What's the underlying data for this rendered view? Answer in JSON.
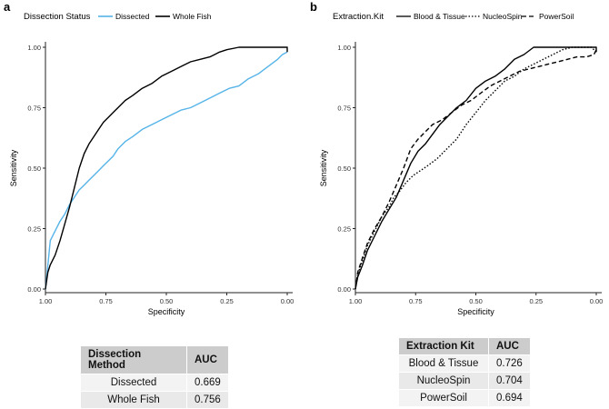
{
  "colors": {
    "axis": "#222222",
    "whole_fish": "#000000",
    "dissected": "#56b4e9",
    "table_header_bg": "#cccccc"
  },
  "panel_a": {
    "label": "a",
    "legend_title": "Dissection Status",
    "table": {
      "headers": [
        "Dissection Method",
        "AUC"
      ],
      "rows": [
        [
          "Dissected",
          "0.669"
        ],
        [
          "Whole Fish",
          "0.756"
        ]
      ]
    }
  },
  "panel_b": {
    "label": "b",
    "legend_title": "Extraction.Kit",
    "table": {
      "headers": [
        "Extraction Kit",
        "AUC"
      ],
      "rows": [
        [
          "Blood & Tissue",
          "0.726"
        ],
        [
          "NucleoSpin",
          "0.704"
        ],
        [
          "PowerSoil",
          "0.694"
        ]
      ]
    }
  },
  "chart_data": [
    {
      "type": "line",
      "panel": "a",
      "title": "",
      "xlabel": "Specificity",
      "ylabel": "Sensitivity",
      "xlim": [
        1.0,
        0.0
      ],
      "ylim": [
        0.0,
        1.0
      ],
      "x_ticks": [
        "1.00",
        "0.75",
        "0.50",
        "0.25",
        "0.00"
      ],
      "y_ticks": [
        "0.00",
        "0.25",
        "0.50",
        "0.75",
        "1.00"
      ],
      "grid": false,
      "legend_position": "top",
      "series": [
        {
          "name": "Dissected",
          "color": "#56b4e9",
          "dash": "solid",
          "x": [
            1.0,
            0.99,
            0.98,
            0.96,
            0.94,
            0.92,
            0.9,
            0.88,
            0.86,
            0.84,
            0.82,
            0.8,
            0.78,
            0.76,
            0.74,
            0.72,
            0.7,
            0.67,
            0.64,
            0.6,
            0.56,
            0.52,
            0.48,
            0.44,
            0.4,
            0.36,
            0.32,
            0.28,
            0.24,
            0.2,
            0.16,
            0.12,
            0.08,
            0.04,
            0.02,
            0.0
          ],
          "y": [
            0.0,
            0.1,
            0.2,
            0.24,
            0.28,
            0.31,
            0.35,
            0.38,
            0.41,
            0.43,
            0.45,
            0.47,
            0.49,
            0.51,
            0.53,
            0.55,
            0.58,
            0.61,
            0.63,
            0.66,
            0.68,
            0.7,
            0.72,
            0.74,
            0.75,
            0.77,
            0.79,
            0.81,
            0.83,
            0.84,
            0.87,
            0.89,
            0.92,
            0.95,
            0.97,
            0.98
          ]
        },
        {
          "name": "Whole Fish",
          "color": "#000000",
          "dash": "solid",
          "x": [
            1.0,
            0.99,
            0.98,
            0.96,
            0.94,
            0.92,
            0.9,
            0.88,
            0.86,
            0.84,
            0.82,
            0.8,
            0.78,
            0.76,
            0.74,
            0.72,
            0.7,
            0.67,
            0.64,
            0.6,
            0.56,
            0.52,
            0.48,
            0.44,
            0.4,
            0.36,
            0.32,
            0.3,
            0.28,
            0.25,
            0.2,
            0.1,
            0.0,
            0.0
          ],
          "y": [
            0.0,
            0.07,
            0.1,
            0.14,
            0.2,
            0.27,
            0.34,
            0.42,
            0.5,
            0.56,
            0.6,
            0.63,
            0.66,
            0.69,
            0.71,
            0.73,
            0.75,
            0.78,
            0.8,
            0.83,
            0.85,
            0.88,
            0.9,
            0.92,
            0.94,
            0.95,
            0.96,
            0.97,
            0.98,
            0.99,
            1.0,
            1.0,
            1.0,
            0.98
          ]
        }
      ]
    },
    {
      "type": "line",
      "panel": "b",
      "title": "",
      "xlabel": "Specificity",
      "ylabel": "Sensitivity",
      "xlim": [
        1.0,
        0.0
      ],
      "ylim": [
        0.0,
        1.0
      ],
      "x_ticks": [
        "1.00",
        "0.75",
        "0.50",
        "0.25",
        "0.00"
      ],
      "y_ticks": [
        "0.00",
        "0.25",
        "0.50",
        "0.75",
        "1.00"
      ],
      "grid": false,
      "legend_position": "top",
      "series": [
        {
          "name": "Blood & Tissue",
          "color": "#000000",
          "dash": "solid",
          "x": [
            1.0,
            0.99,
            0.97,
            0.95,
            0.92,
            0.89,
            0.86,
            0.83,
            0.8,
            0.77,
            0.74,
            0.71,
            0.68,
            0.65,
            0.62,
            0.58,
            0.54,
            0.5,
            0.46,
            0.42,
            0.38,
            0.34,
            0.3,
            0.26,
            0.24,
            0.2,
            0.1,
            0.0,
            0.0
          ],
          "y": [
            0.0,
            0.05,
            0.1,
            0.16,
            0.22,
            0.28,
            0.33,
            0.38,
            0.45,
            0.52,
            0.57,
            0.6,
            0.64,
            0.68,
            0.71,
            0.75,
            0.78,
            0.83,
            0.86,
            0.88,
            0.91,
            0.95,
            0.97,
            1.0,
            1.0,
            1.0,
            1.0,
            1.0,
            0.98
          ]
        },
        {
          "name": "NucleoSpin",
          "color": "#000000",
          "dash": "dotted",
          "x": [
            1.0,
            0.99,
            0.97,
            0.95,
            0.92,
            0.89,
            0.86,
            0.84,
            0.82,
            0.79,
            0.76,
            0.73,
            0.7,
            0.66,
            0.62,
            0.58,
            0.54,
            0.5,
            0.46,
            0.42,
            0.38,
            0.34,
            0.3,
            0.26,
            0.22,
            0.18,
            0.14,
            0.1,
            0.06,
            0.02,
            0.0
          ],
          "y": [
            0.0,
            0.06,
            0.12,
            0.18,
            0.24,
            0.3,
            0.34,
            0.38,
            0.4,
            0.44,
            0.47,
            0.49,
            0.51,
            0.54,
            0.58,
            0.62,
            0.68,
            0.73,
            0.78,
            0.82,
            0.86,
            0.88,
            0.91,
            0.93,
            0.95,
            0.97,
            0.99,
            1.0,
            1.0,
            1.0,
            0.98
          ]
        },
        {
          "name": "PowerSoil",
          "color": "#000000",
          "dash": "dashed",
          "x": [
            1.0,
            0.99,
            0.97,
            0.95,
            0.92,
            0.89,
            0.86,
            0.83,
            0.8,
            0.77,
            0.74,
            0.71,
            0.68,
            0.64,
            0.6,
            0.56,
            0.52,
            0.48,
            0.44,
            0.4,
            0.36,
            0.32,
            0.28,
            0.24,
            0.2,
            0.16,
            0.12,
            0.08,
            0.04,
            0.01,
            0.0
          ],
          "y": [
            0.0,
            0.07,
            0.13,
            0.19,
            0.25,
            0.3,
            0.36,
            0.43,
            0.5,
            0.58,
            0.62,
            0.65,
            0.68,
            0.7,
            0.73,
            0.76,
            0.78,
            0.81,
            0.84,
            0.86,
            0.88,
            0.9,
            0.91,
            0.92,
            0.93,
            0.94,
            0.95,
            0.96,
            0.96,
            0.97,
            0.99
          ]
        }
      ]
    }
  ]
}
